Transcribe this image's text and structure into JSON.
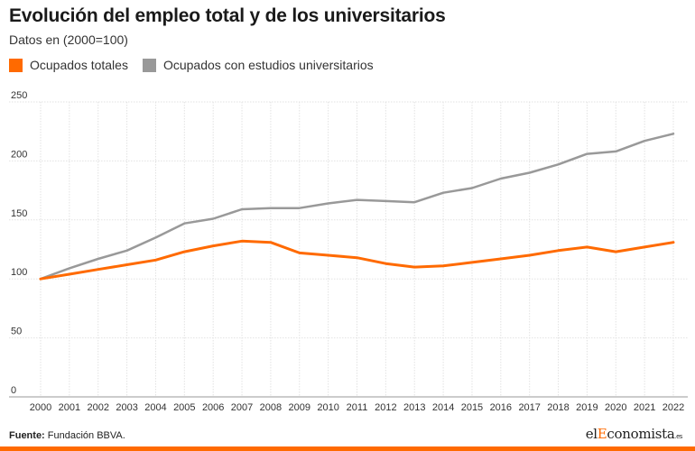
{
  "title": "Evolución del empleo total y de los universitarios",
  "subtitle": "Datos en (2000=100)",
  "source_label": "Fuente:",
  "source_text": " Fundación BBVA.",
  "brand": {
    "part1": "el",
    "part2": "E",
    "part3": "conomista",
    "part4": ".es"
  },
  "colors": {
    "orange": "#ff6a00",
    "gray": "#999999",
    "accent_bar": "#ff6a00"
  },
  "chart_data": {
    "type": "line",
    "title": "Evolución del empleo total y de los universitarios",
    "subtitle": "Datos en (2000=100)",
    "xlabel": "",
    "ylabel": "",
    "x": [
      "2000",
      "2001",
      "2002",
      "2003",
      "2004",
      "2005",
      "2006",
      "2007",
      "2008",
      "2009",
      "2010",
      "2011",
      "2012",
      "2013",
      "2014",
      "2015",
      "2016",
      "2017",
      "2018",
      "2019",
      "2020",
      "2021",
      "2022"
    ],
    "ylim": [
      0,
      250
    ],
    "yticks": [
      0,
      50,
      100,
      150,
      200,
      250
    ],
    "grid": true,
    "legend_position": "top-left",
    "series": [
      {
        "name": "Ocupados totales",
        "color": "#ff6a00",
        "values": [
          100,
          104,
          108,
          112,
          116,
          123,
          128,
          132,
          131,
          122,
          120,
          118,
          113,
          110,
          111,
          114,
          117,
          120,
          124,
          127,
          123,
          127,
          131
        ]
      },
      {
        "name": "Ocupados con estudios universitarios",
        "color": "#999999",
        "values": [
          100,
          109,
          117,
          124,
          135,
          147,
          151,
          159,
          160,
          160,
          164,
          167,
          166,
          165,
          173,
          177,
          185,
          190,
          197,
          206,
          208,
          217,
          223
        ]
      }
    ]
  }
}
